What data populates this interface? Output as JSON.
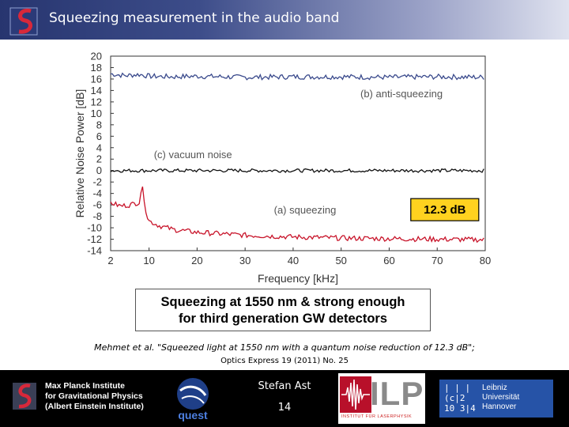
{
  "header": {
    "title": "Squeezing measurement in the audio band"
  },
  "chart_data": {
    "type": "line",
    "xlabel": "Frequency [kHz]",
    "ylabel": "Relative Noise Power [dB]",
    "xlim": [
      2,
      80
    ],
    "ylim": [
      -14,
      20
    ],
    "x_ticks": [
      2,
      10,
      20,
      30,
      40,
      50,
      60,
      70,
      80
    ],
    "y_ticks": [
      20,
      18,
      16,
      14,
      12,
      10,
      8,
      6,
      4,
      2,
      0,
      -2,
      -4,
      -6,
      -8,
      -10,
      -12,
      -14
    ],
    "grid": false,
    "series": [
      {
        "name": "(b) anti-squeezing",
        "color": "#3a4a8c",
        "x": [
          2,
          5,
          8,
          10,
          15,
          20,
          30,
          40,
          50,
          60,
          70,
          80
        ],
        "values": [
          16.9,
          16.6,
          16.8,
          16.5,
          16.4,
          16.5,
          16.3,
          16.4,
          16.4,
          16.3,
          16.4,
          16.3
        ]
      },
      {
        "name": "(c) vacuum noise",
        "color": "#111111",
        "x": [
          2,
          10,
          20,
          30,
          40,
          50,
          60,
          70,
          80
        ],
        "values": [
          0,
          0,
          0,
          0,
          0,
          0,
          0,
          0,
          0
        ]
      },
      {
        "name": "(a) squeezing",
        "color": "#c8142a",
        "x": [
          2,
          4,
          6,
          8,
          8.5,
          9,
          9.5,
          10,
          12,
          15,
          20,
          30,
          40,
          50,
          60,
          70,
          80
        ],
        "values": [
          -5.6,
          -6.2,
          -6.0,
          -5.5,
          -2.5,
          -5.0,
          -7.8,
          -8.8,
          -9.6,
          -10.3,
          -10.8,
          -11.3,
          -11.6,
          -11.8,
          -11.9,
          -12.0,
          -12.1
        ]
      }
    ],
    "annotations": {
      "anti_squeezing": "(b) anti-squeezing",
      "vacuum_noise": "(c) vacuum noise",
      "squeezing": "(a) squeezing",
      "highlight": "12.3 dB"
    }
  },
  "callout": {
    "line1": "Squeezing at 1550 nm & strong enough",
    "line2": "for third generation GW detectors"
  },
  "citation": {
    "line1": "Mehmet et al. \"Squeezed light at 1550 nm with a quantum noise reduction of 12.3 dB\";",
    "line2": "Optics Express 19 (2011) No. 25"
  },
  "footer": {
    "mpi_line1": "Max Planck Institute",
    "mpi_line2": "for Gravitational Physics",
    "mpi_line3": "(Albert Einstein Institute)",
    "quest_label": "quest",
    "presenter": "Stefan Ast",
    "page_number": "14",
    "ilp_label": "ILP",
    "ilp_sub": "INSTITUT FÜR LASERPHYSIK",
    "luh_line1": "Leibniz",
    "luh_line2": "Universität",
    "luh_line3": "Hannover",
    "luh_mark_line1": "| | |",
    "luh_mark_line2": "(c|2",
    "luh_mark_line3": "10 3|4"
  },
  "colors": {
    "header_dark": "#27356f",
    "header_light": "#dfe2ef",
    "accent_red": "#c8142a",
    "highlight_yellow": "#ffd21f",
    "luh_blue": "#2653a7"
  }
}
